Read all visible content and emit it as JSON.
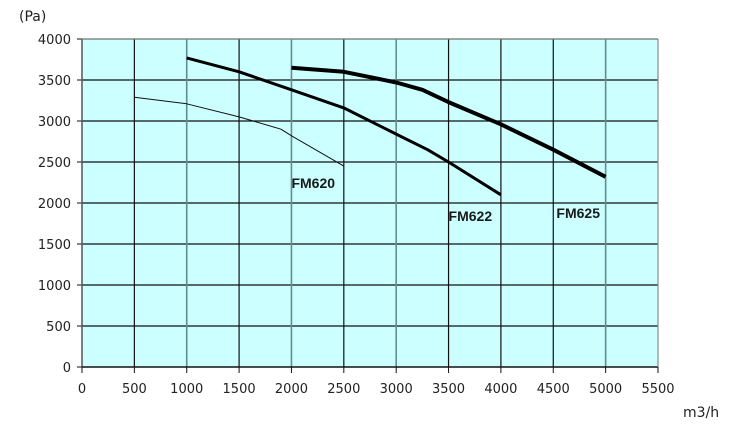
{
  "chart_data": {
    "type": "line",
    "title": "",
    "xlabel": "m3/h",
    "ylabel": "(Pa)",
    "xlim": [
      0,
      5500
    ],
    "ylim": [
      0,
      4000
    ],
    "x_ticks": [
      0,
      500,
      1000,
      1500,
      2000,
      2500,
      3000,
      3500,
      4000,
      4500,
      5000,
      5500
    ],
    "y_ticks": [
      0,
      500,
      1000,
      1500,
      2000,
      2500,
      3000,
      3500,
      4000
    ],
    "grid": true,
    "plot_background": "#ccffff",
    "legend_position": "inline labels near curve ends",
    "series": [
      {
        "name": "FM620",
        "line_width": 1,
        "color": "#111111",
        "x": [
          500,
          1000,
          1500,
          1900,
          2000,
          2500
        ],
        "values": [
          3290,
          3210,
          3050,
          2900,
          2820,
          2450
        ],
        "label_pos": [
          2000,
          2180
        ]
      },
      {
        "name": "FM622",
        "line_width": 3,
        "color": "#000000",
        "x": [
          1000,
          1500,
          2000,
          2500,
          3000,
          3300,
          3500,
          4000
        ],
        "values": [
          3770,
          3600,
          3380,
          3160,
          2840,
          2650,
          2500,
          2100
        ],
        "label_pos": [
          3500,
          1780
        ]
      },
      {
        "name": "FM625",
        "line_width": 4,
        "color": "#000000",
        "x": [
          2000,
          2500,
          3000,
          3250,
          3500,
          4000,
          4500,
          5000
        ],
        "values": [
          3650,
          3600,
          3470,
          3380,
          3230,
          2960,
          2650,
          2320
        ],
        "label_pos": [
          4530,
          1820
        ]
      }
    ]
  }
}
